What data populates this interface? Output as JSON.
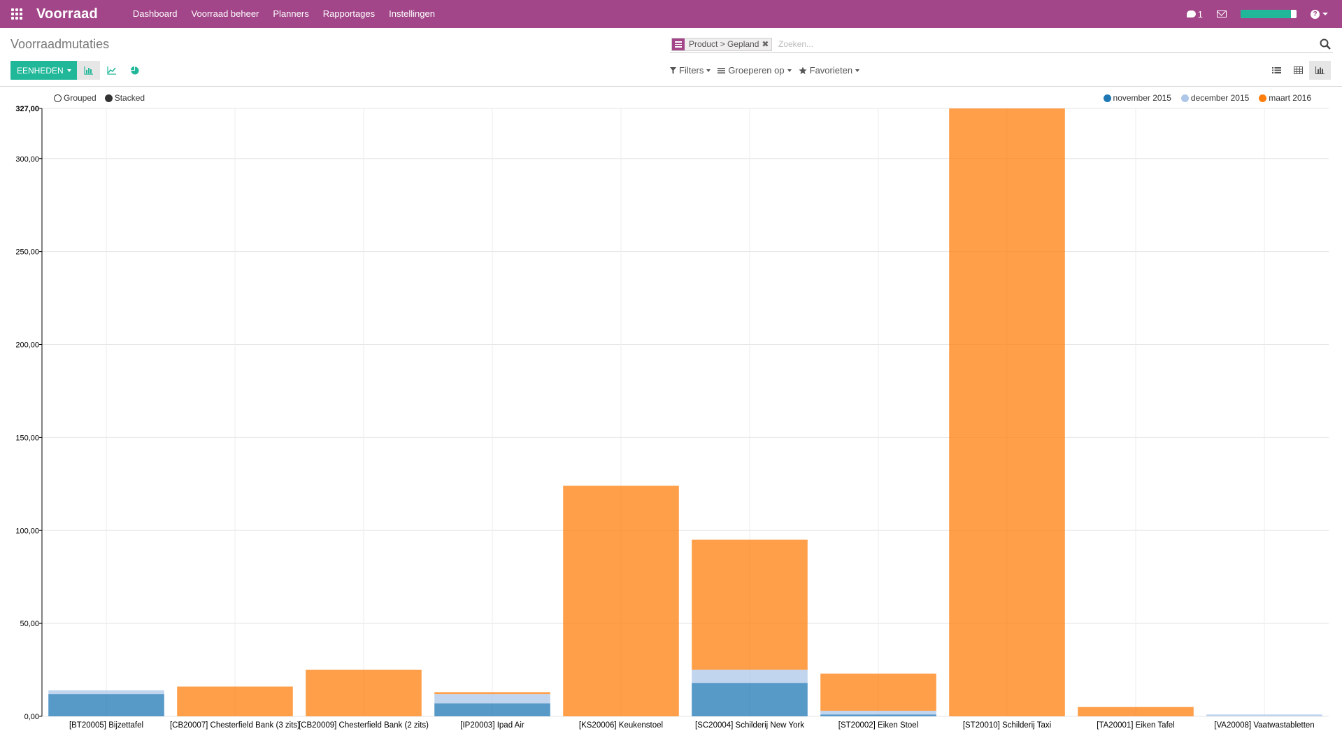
{
  "navbar": {
    "brand": "Voorraad",
    "menu": [
      "Dashboard",
      "Voorraad beheer",
      "Planners",
      "Rapportages",
      "Instellingen"
    ],
    "messages_count": "1",
    "progress": 0.9
  },
  "control_panel": {
    "title": "Voorraadmutaties",
    "measure_button": "EENHEDEN",
    "search": {
      "facet": "Product > Gepland",
      "placeholder": "Zoeken..."
    },
    "filters": {
      "filters": "Filters",
      "group_by": "Groeperen op",
      "favorites": "Favorieten"
    }
  },
  "colors": {
    "navbar": "#a24689",
    "accent": "#21b799"
  },
  "chart_data": {
    "type": "bar",
    "stacked": true,
    "mode_options": [
      "Grouped",
      "Stacked"
    ],
    "selected_mode": "Stacked",
    "categories": [
      "[BT20005] Bijzettafel",
      "[CB20007] Chesterfield Bank (3 zits)",
      "[CB20009] Chesterfield Bank (2 zits)",
      "[IP20003] Ipad Air",
      "[KS20006] Keukenstoel",
      "[SC20004] Schilderij New York",
      "[ST20002] Eiken Stoel",
      "[ST20010] Schilderij Taxi",
      "[TA20001] Eiken Tafel",
      "[VA20008] Vaatwastabletten"
    ],
    "series": [
      {
        "name": "november 2015",
        "color": "#1f77b4",
        "values": [
          12,
          0,
          0,
          7,
          0,
          18,
          1,
          0,
          0,
          0
        ]
      },
      {
        "name": "december 2015",
        "color": "#aec7e8",
        "values": [
          2,
          0,
          0,
          5,
          0,
          7,
          2,
          0,
          0,
          1
        ]
      },
      {
        "name": "maart 2016",
        "color": "#ff7f0e",
        "values": [
          0,
          16,
          25,
          1,
          124,
          70,
          20,
          327,
          5,
          0
        ]
      }
    ],
    "yticks": [
      "0,00",
      "50,00",
      "100,00",
      "150,00",
      "200,00",
      "250,00",
      "300,00",
      "327,00"
    ],
    "ytick_values": [
      0,
      50,
      100,
      150,
      200,
      250,
      300,
      327
    ],
    "ylim": [
      0,
      327
    ],
    "grid": true,
    "legend": "top-right"
  }
}
